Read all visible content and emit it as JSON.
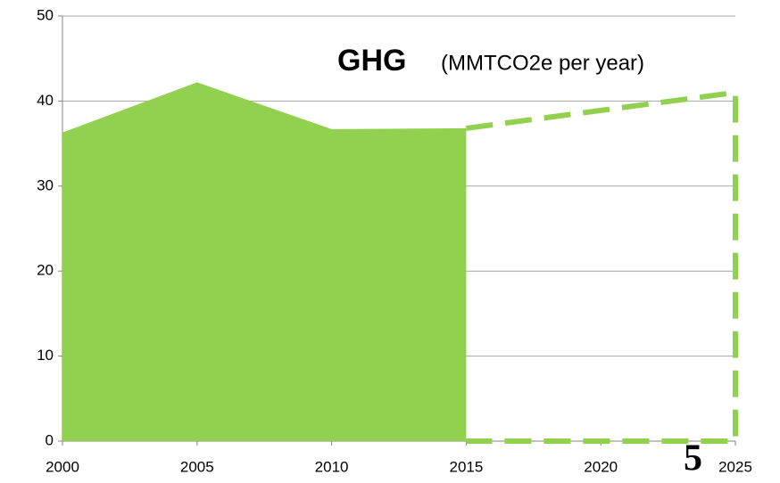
{
  "chart_data": {
    "type": "area",
    "title": "GHG",
    "subtitle": "(MMTCO2e per year)",
    "x": [
      2000,
      2005,
      2010,
      2015,
      2020,
      2025
    ],
    "series": [
      {
        "color": "#92d050",
        "style": "filled",
        "values": [
          36.3,
          42.2,
          36.7,
          36.8,
          null,
          null
        ]
      },
      {
        "color": "#92d050",
        "style": "dashed",
        "values": [
          null,
          null,
          null,
          36.8,
          38.9,
          41.0
        ]
      }
    ],
    "xlim": [
      2000,
      2025
    ],
    "xticks": [
      2000,
      2005,
      2010,
      2015,
      2020,
      2025
    ],
    "ylim": [
      0,
      50
    ],
    "yticks": [
      0,
      10,
      20,
      30,
      40,
      50
    ],
    "grid": true
  },
  "page_number": "5"
}
